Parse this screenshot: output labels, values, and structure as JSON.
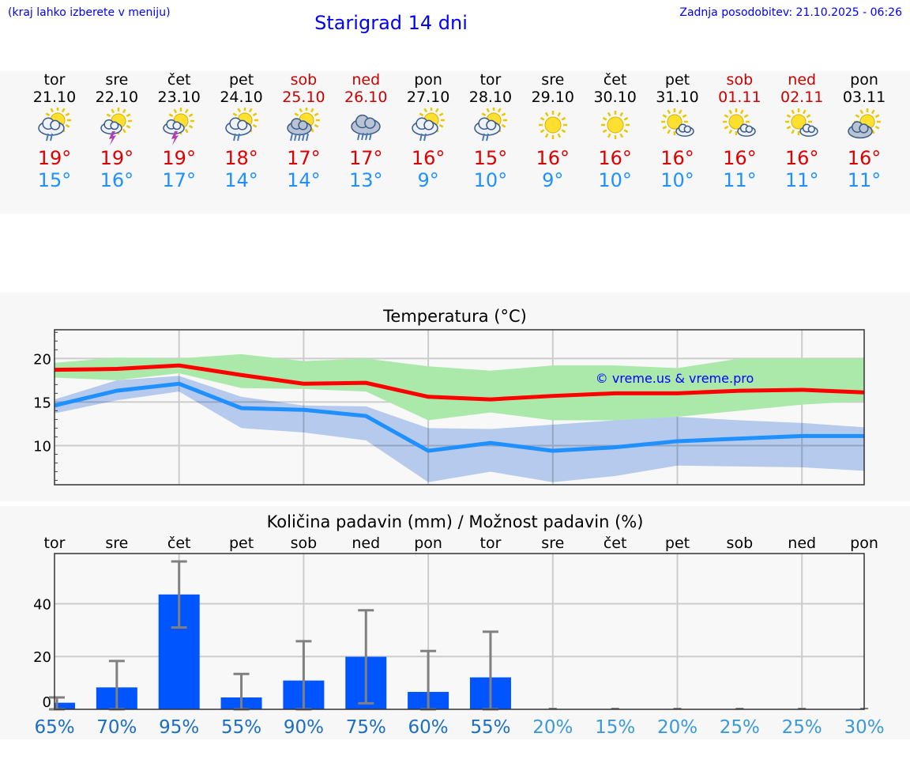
{
  "header": {
    "hint": "(kraj lahko izberete v meniju)",
    "title": "Starigrad 14 dni",
    "updated": "Zadnja posodobitev: 21.10.2025 - 06:26"
  },
  "days": [
    {
      "name": "tor",
      "date": "21.10",
      "icon": "sun-cloud-rain",
      "max": "19°",
      "min": "15°",
      "weekend": false
    },
    {
      "name": "sre",
      "date": "22.10",
      "icon": "sun-thunder",
      "max": "19°",
      "min": "16°",
      "weekend": false
    },
    {
      "name": "čet",
      "date": "23.10",
      "icon": "sun-thunder",
      "max": "19°",
      "min": "17°",
      "weekend": false
    },
    {
      "name": "pet",
      "date": "24.10",
      "icon": "sun-cloud-rain",
      "max": "18°",
      "min": "14°",
      "weekend": false
    },
    {
      "name": "sob",
      "date": "25.10",
      "icon": "sun-cloud-heavy-rain",
      "max": "17°",
      "min": "14°",
      "weekend": true
    },
    {
      "name": "ned",
      "date": "26.10",
      "icon": "cloud-rain",
      "max": "17°",
      "min": "13°",
      "weekend": true
    },
    {
      "name": "pon",
      "date": "27.10",
      "icon": "sun-cloud-rain",
      "max": "16°",
      "min": "9°",
      "weekend": false
    },
    {
      "name": "tor",
      "date": "28.10",
      "icon": "sun-cloud-rain",
      "max": "15°",
      "min": "10°",
      "weekend": false
    },
    {
      "name": "sre",
      "date": "29.10",
      "icon": "sun",
      "max": "16°",
      "min": "9°",
      "weekend": false
    },
    {
      "name": "čet",
      "date": "30.10",
      "icon": "sun",
      "max": "16°",
      "min": "10°",
      "weekend": false
    },
    {
      "name": "pet",
      "date": "31.10",
      "icon": "sun-small-cloud",
      "max": "16°",
      "min": "10°",
      "weekend": false
    },
    {
      "name": "sob",
      "date": "01.11",
      "icon": "sun-small-cloud",
      "max": "16°",
      "min": "11°",
      "weekend": true
    },
    {
      "name": "ned",
      "date": "02.11",
      "icon": "sun-small-cloud",
      "max": "16°",
      "min": "11°",
      "weekend": true
    },
    {
      "name": "pon",
      "date": "03.11",
      "icon": "sun-cloud",
      "max": "16°",
      "min": "11°",
      "weekend": false
    }
  ],
  "colors": {
    "max": "#ff0000",
    "min": "#1e90ff",
    "maxband": "#abe9ab",
    "minband": "#aec8f2",
    "bar": "#0055ff",
    "err": "#808080"
  },
  "chart_data": [
    {
      "type": "line",
      "title": "Temperatura (°C)",
      "watermark": "© vreme.us & vreme.pro",
      "ylim": [
        5.5,
        23.3
      ],
      "yticks": [
        10,
        15,
        20
      ],
      "categories": [
        "21.10",
        "22.10",
        "23.10",
        "24.10",
        "25.10",
        "26.10",
        "27.10",
        "28.10",
        "29.10",
        "30.10",
        "31.10",
        "01.11",
        "02.11",
        "03.11"
      ],
      "series": [
        {
          "name": "max",
          "values": [
            18.7,
            18.8,
            19.2,
            18.1,
            17.1,
            17.2,
            15.6,
            15.3,
            15.7,
            16.0,
            16.0,
            16.3,
            16.4,
            16.1
          ]
        },
        {
          "name": "min",
          "values": [
            14.6,
            16.3,
            17.1,
            14.3,
            14.1,
            13.4,
            9.4,
            10.3,
            9.4,
            9.8,
            10.5,
            10.8,
            11.1,
            11.1
          ]
        }
      ],
      "bands": [
        {
          "name": "max-range",
          "upper": [
            19.5,
            20.1,
            20.0,
            20.5,
            19.7,
            20.0,
            19.1,
            18.6,
            19.2,
            19.2,
            18.9,
            20.0,
            20.0,
            20.0
          ],
          "lower": [
            17.8,
            17.5,
            18.3,
            16.6,
            16.5,
            16.2,
            12.9,
            13.8,
            12.9,
            12.9,
            13.3,
            14.0,
            14.7,
            15.1
          ]
        },
        {
          "name": "min-range",
          "upper": [
            15.3,
            17.5,
            18.0,
            15.6,
            14.6,
            14.5,
            12.0,
            11.9,
            12.4,
            12.9,
            13.3,
            12.9,
            12.6,
            12.1
          ],
          "lower": [
            13.7,
            15.2,
            16.2,
            12.0,
            11.5,
            10.6,
            5.8,
            7.0,
            5.8,
            6.5,
            7.7,
            7.6,
            7.5,
            7.1
          ]
        }
      ]
    },
    {
      "type": "bar",
      "title": "Količina padavin (mm) / Možnost padavin (%)",
      "ylim": [
        0,
        59
      ],
      "yticks": [
        0,
        20,
        40
      ],
      "categories": [
        "tor",
        "sre",
        "čet",
        "pet",
        "sob",
        "ned",
        "pon",
        "tor",
        "sre",
        "čet",
        "pet",
        "sob",
        "ned",
        "pon"
      ],
      "values": [
        2.5,
        8.3,
        43.5,
        4.5,
        10.9,
        19.9,
        6.6,
        12.1,
        0,
        0,
        0,
        0,
        0,
        0
      ],
      "err_low": [
        0,
        0,
        31,
        0,
        0,
        2.3,
        0,
        0,
        0,
        0,
        0,
        0,
        0,
        0
      ],
      "err_high": [
        4.5,
        18.3,
        56,
        13.4,
        25.8,
        37.5,
        22.1,
        29.4,
        0,
        0,
        0,
        0,
        0,
        0
      ],
      "probability": [
        "65%",
        "70%",
        "95%",
        "55%",
        "90%",
        "75%",
        "60%",
        "55%",
        "20%",
        "15%",
        "20%",
        "25%",
        "25%",
        "30%"
      ]
    }
  ]
}
